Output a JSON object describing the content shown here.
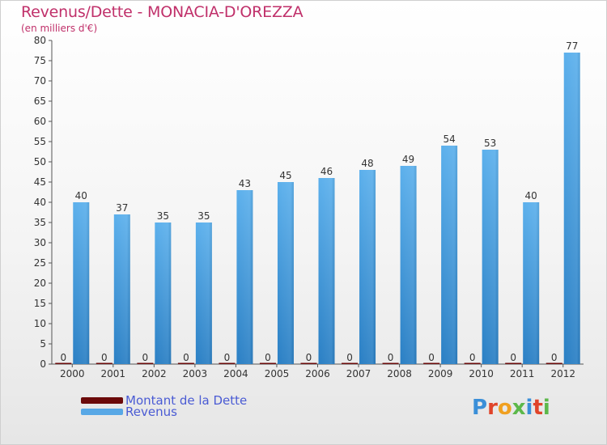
{
  "title": "Revenus/Dette - MONACIA-D'OREZZA",
  "subtitle": "(en milliers d'€)",
  "logo": "Proxiti",
  "colors": {
    "title": "#c0306a",
    "dette": "#6b0a0a",
    "revenus": "#58a8e6",
    "revenus_dark": "#2a7fc4",
    "legend_text": "#4a5bd4"
  },
  "legend": [
    {
      "label": "Montant de la Dette",
      "color": "#6b0a0a"
    },
    {
      "label": "Revenus",
      "color": "#58a8e6"
    }
  ],
  "chart_data": {
    "type": "bar",
    "title": "Revenus/Dette - MONACIA-D'OREZZA",
    "subtitle": "(en milliers d'€)",
    "categories": [
      "2000",
      "2001",
      "2002",
      "2003",
      "2004",
      "2005",
      "2006",
      "2007",
      "2008",
      "2009",
      "2010",
      "2011",
      "2012"
    ],
    "series": [
      {
        "name": "Montant de la Dette",
        "values": [
          0,
          0,
          0,
          0,
          0,
          0,
          0,
          0,
          0,
          0,
          0,
          0,
          0
        ]
      },
      {
        "name": "Revenus",
        "values": [
          40,
          37,
          35,
          35,
          43,
          45,
          46,
          48,
          49,
          54,
          53,
          40,
          77
        ]
      }
    ],
    "ylim": [
      0,
      80
    ],
    "yticks": [
      0,
      5,
      10,
      15,
      20,
      25,
      30,
      35,
      40,
      45,
      50,
      55,
      60,
      65,
      70,
      75,
      80
    ],
    "grid": false,
    "legend_position": "bottom-left"
  }
}
